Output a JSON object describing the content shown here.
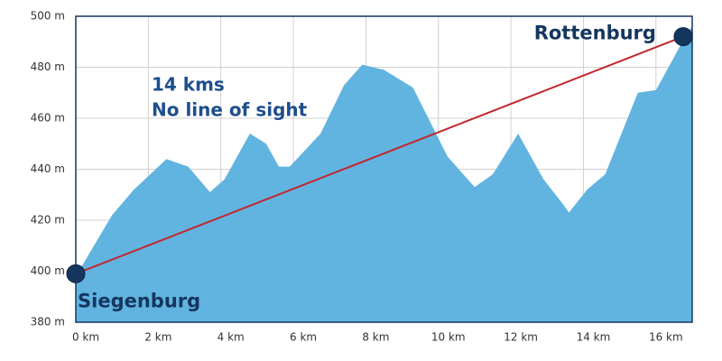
{
  "chart_data": {
    "type": "area",
    "x": [
      0,
      1,
      1.6,
      2.5,
      3.1,
      3.7,
      4.1,
      4.8,
      5.25,
      5.6,
      5.9,
      6.75,
      7.4,
      7.9,
      8.5,
      9.3,
      10.25,
      11,
      11.5,
      12.2,
      12.9,
      13.4,
      13.6,
      14.1,
      14.6,
      15.5,
      16,
      16.5,
      16.8,
      17
    ],
    "values": [
      398,
      422,
      432,
      444,
      441,
      431,
      436,
      454,
      450,
      441,
      441,
      454,
      473,
      481,
      479,
      472,
      445,
      433,
      438,
      454,
      436,
      427,
      423,
      432,
      438,
      470,
      471,
      484,
      492,
      496
    ],
    "color": "#62b4e0",
    "sight_line": {
      "x": [
        0,
        16.75
      ],
      "values": [
        399,
        492
      ],
      "color": "#c1272d",
      "marker_color": "#14365e",
      "labels": [
        "Siegenburg",
        "Rottenburg"
      ]
    },
    "annotations": [
      "14 kms",
      "No line of sight"
    ],
    "xlim": [
      0,
      17
    ],
    "ylim": [
      380,
      500
    ],
    "xticks": [
      {
        "value": 0,
        "label": "0 km"
      },
      {
        "value": 2,
        "label": "2 km"
      },
      {
        "value": 4,
        "label": "4 km"
      },
      {
        "value": 6,
        "label": "6 km"
      },
      {
        "value": 8,
        "label": "8 km"
      },
      {
        "value": 10,
        "label": "10 km"
      },
      {
        "value": 12,
        "label": "12 km"
      },
      {
        "value": 14,
        "label": "14 km"
      },
      {
        "value": 16,
        "label": "16 km"
      }
    ],
    "yticks": [
      {
        "value": 380,
        "label": "380 m"
      },
      {
        "value": 400,
        "label": "400 m"
      },
      {
        "value": 420,
        "label": "420 m"
      },
      {
        "value": 440,
        "label": "440 m"
      },
      {
        "value": 460,
        "label": "460 m"
      },
      {
        "value": 480,
        "label": "480 m"
      },
      {
        "value": 500,
        "label": "500 m"
      }
    ],
    "grid": true
  }
}
